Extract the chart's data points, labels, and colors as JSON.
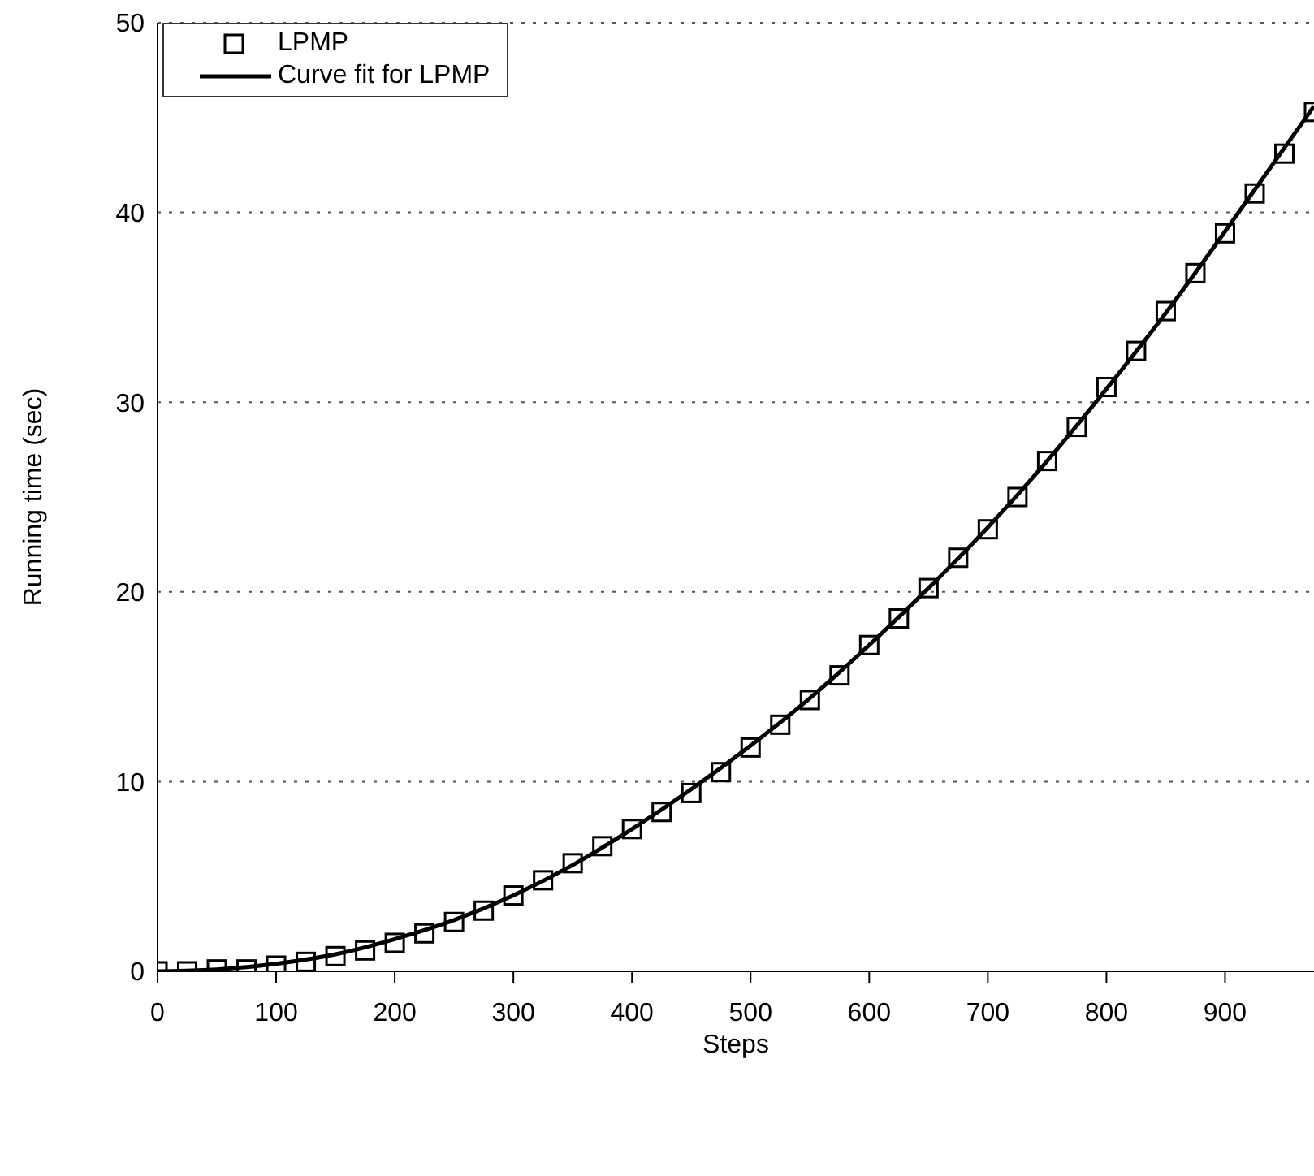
{
  "chart_data": {
    "type": "scatter",
    "xlabel": "Steps",
    "ylabel": "Running time (sec)",
    "xlim": [
      0,
      975
    ],
    "xticks": [
      0,
      100,
      200,
      300,
      400,
      500,
      600,
      700,
      800,
      900
    ],
    "ylim": [
      0,
      50
    ],
    "yticks": [
      0,
      10,
      20,
      30,
      40,
      50
    ],
    "grid": "y",
    "legend": "top left",
    "series": [
      {
        "name": "LPMP",
        "marker": "square",
        "color": "#000000",
        "x": [
          0,
          25,
          50,
          75,
          100,
          125,
          150,
          175,
          200,
          225,
          250,
          275,
          300,
          325,
          350,
          375,
          400,
          425,
          450,
          475,
          500,
          525,
          550,
          575,
          600,
          625,
          650,
          675,
          700,
          725,
          750,
          775,
          800,
          825,
          850,
          875,
          900,
          925,
          950,
          975
        ],
        "values": [
          0,
          0,
          0.1,
          0.1,
          0.3,
          0.5,
          0.8,
          1.1,
          1.5,
          2.0,
          2.6,
          3.2,
          4.0,
          4.8,
          5.7,
          6.6,
          7.5,
          8.4,
          9.4,
          10.5,
          11.8,
          13.0,
          14.3,
          15.6,
          17.2,
          18.6,
          20.2,
          21.8,
          23.3,
          25.0,
          26.9,
          28.7,
          30.8,
          32.7,
          34.8,
          36.8,
          38.9,
          41.0,
          43.1,
          45.3
        ]
      },
      {
        "name": "Curve fit for LPMP",
        "type": "line",
        "marker": "none",
        "line_style": "solid",
        "color": "#000000",
        "x": [
          0,
          50,
          100,
          150,
          200,
          250,
          300,
          350,
          400,
          450,
          500,
          550,
          600,
          650,
          700,
          750,
          800,
          850,
          900,
          950,
          975
        ],
        "values": [
          0,
          0.1,
          0.4,
          0.9,
          1.7,
          2.7,
          4.0,
          5.6,
          7.5,
          9.6,
          11.9,
          14.4,
          17.2,
          20.2,
          23.4,
          26.9,
          30.7,
          34.7,
          39.0,
          43.4,
          45.6
        ]
      }
    ]
  }
}
